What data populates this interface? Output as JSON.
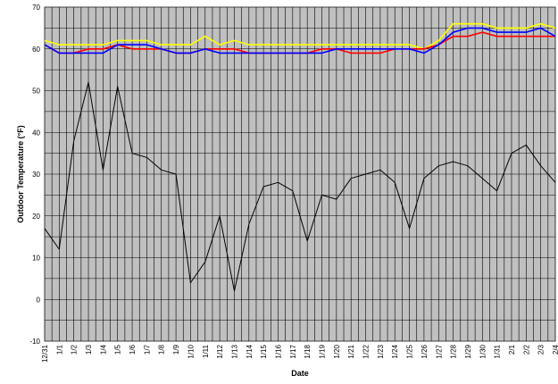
{
  "chart_data": {
    "type": "line",
    "title": "",
    "xlabel": "Date",
    "ylabel": "Outdoor Temperature (°F)",
    "ylim": [
      -10,
      70
    ],
    "yticks": [
      -10,
      0,
      10,
      20,
      30,
      40,
      50,
      60,
      70
    ],
    "grid": true,
    "plot_background": "#c0c0c0",
    "x": [
      "12/31",
      "1/1",
      "1/2",
      "1/3",
      "1/4",
      "1/5",
      "1/6",
      "1/7",
      "1/8",
      "1/9",
      "1/10",
      "1/11",
      "1/12",
      "1/13",
      "1/14",
      "1/15",
      "1/16",
      "1/17",
      "1/18",
      "1/19",
      "1/20",
      "1/21",
      "1/22",
      "1/23",
      "1/24",
      "1/25",
      "1/26",
      "1/27",
      "1/28",
      "1/29",
      "1/30",
      "1/31",
      "2/1",
      "2/2",
      "2/3",
      "2/4"
    ],
    "series": [
      {
        "color": "#ffff00",
        "values": [
          62,
          61,
          61,
          61,
          61,
          62,
          62,
          62,
          61,
          61,
          61,
          63,
          61,
          62,
          61,
          61,
          61,
          61,
          61,
          61,
          61,
          61,
          61,
          61,
          61,
          61,
          60,
          62,
          66,
          66,
          66,
          65,
          65,
          65,
          66,
          65
        ]
      },
      {
        "color": "#ff0000",
        "values": [
          61,
          59,
          59,
          60,
          60,
          61,
          60,
          60,
          60,
          59,
          59,
          60,
          60,
          60,
          59,
          59,
          59,
          59,
          59,
          60,
          60,
          59,
          59,
          59,
          60,
          60,
          60,
          61,
          63,
          63,
          64,
          63,
          63,
          63,
          63,
          63
        ]
      },
      {
        "color": "#0000ff",
        "values": [
          61,
          59,
          59,
          59,
          59,
          61,
          61,
          61,
          60,
          59,
          59,
          60,
          59,
          59,
          59,
          59,
          59,
          59,
          59,
          59,
          60,
          60,
          60,
          60,
          60,
          60,
          59,
          61,
          64,
          65,
          65,
          64,
          64,
          64,
          65,
          63
        ]
      },
      {
        "color": "#000000",
        "values": [
          17,
          12,
          38,
          52,
          31,
          51,
          35,
          34,
          31,
          30,
          4,
          9,
          20,
          2,
          18,
          27,
          28,
          26,
          14,
          25,
          24,
          29,
          30,
          31,
          28,
          17,
          29,
          32,
          33,
          32,
          29,
          26,
          35,
          37,
          32,
          28
        ]
      }
    ]
  }
}
